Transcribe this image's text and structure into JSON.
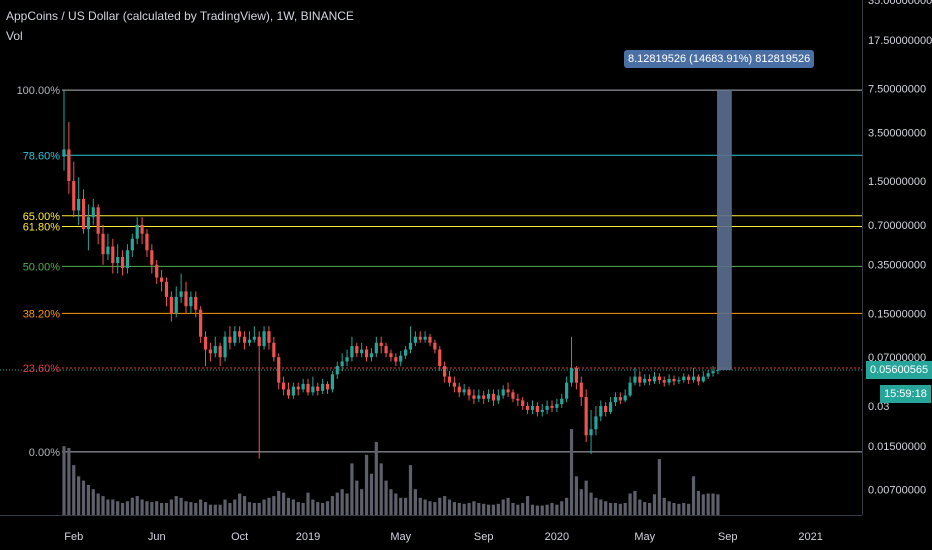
{
  "header": {
    "title": "AppCoins / US Dollar (calculated by TradingView), 1W, BINANCE",
    "indicator": "Vol"
  },
  "measure_label": "8.12819526 (14683.91%) 812819526",
  "price_tag": "0.05600565",
  "countdown_tag": "15:59:18",
  "chart_data": {
    "type": "candlestick",
    "title": "AppCoins / US Dollar (calculated by TradingView), 1W, BINANCE",
    "y_scale": "log",
    "ylim": [
      0.0045,
      35
    ],
    "y_ticks": [
      "35.00000000",
      "17.50000000",
      "7.50000000",
      "3.50000000",
      "1.50000000",
      "0.70000000",
      "0.35000000",
      "0.15000000",
      "0.07000000",
      "0.03",
      "0.01500000",
      "0.00700000"
    ],
    "y_tick_values": [
      35,
      17.5,
      7.5,
      3.5,
      1.5,
      0.7,
      0.35,
      0.15,
      0.07,
      0.03,
      0.015,
      0.007
    ],
    "x_ticks": [
      "Feb",
      "Jun",
      "Oct",
      "2019",
      "May",
      "Sep",
      "2020",
      "May",
      "Sep",
      "2021"
    ],
    "x_tick_weeks": [
      2,
      19,
      36,
      50,
      69,
      86,
      101,
      119,
      136,
      153
    ],
    "x_week_range": [
      0,
      165
    ],
    "fib_levels": [
      {
        "label": "100.00%",
        "value": 7.3,
        "color": "#b2b5be"
      },
      {
        "label": "78.60%",
        "value": 2.35,
        "color": "#26c6da"
      },
      {
        "label": "65.00%",
        "value": 0.82,
        "color": "#ffeb3b"
      },
      {
        "label": "61.80%",
        "value": 0.68,
        "color": "#ffeb3b"
      },
      {
        "label": "50.00%",
        "value": 0.34,
        "color": "#4caf50"
      },
      {
        "label": "38.20%",
        "value": 0.15,
        "color": "#ff9800"
      },
      {
        "label": "23.60%",
        "value": 0.058,
        "color": "#f23645"
      },
      {
        "label": "0.00%",
        "value": 0.0135,
        "color": "#b2b5be"
      }
    ],
    "current_price": 0.05600565,
    "measure": {
      "from_week": 133,
      "to_week": 135,
      "low": 0.056,
      "high": 7.3
    },
    "vol_max": 100,
    "candles": [
      {
        "w": 0,
        "o": 2.3,
        "c": 2.6,
        "h": 7.3,
        "l": 1.8,
        "v": 80
      },
      {
        "w": 1,
        "o": 2.6,
        "c": 1.5,
        "h": 4.2,
        "l": 1.2,
        "v": 78
      },
      {
        "w": 2,
        "o": 1.5,
        "c": 0.9,
        "h": 2.1,
        "l": 0.8,
        "v": 58
      },
      {
        "w": 3,
        "o": 0.9,
        "c": 1.1,
        "h": 1.6,
        "l": 0.7,
        "v": 45
      },
      {
        "w": 4,
        "o": 1.1,
        "c": 0.65,
        "h": 1.3,
        "l": 0.6,
        "v": 40
      },
      {
        "w": 5,
        "o": 0.65,
        "c": 0.8,
        "h": 1.0,
        "l": 0.45,
        "v": 35
      },
      {
        "w": 6,
        "o": 0.8,
        "c": 0.95,
        "h": 1.1,
        "l": 0.7,
        "v": 30
      },
      {
        "w": 7,
        "o": 0.95,
        "c": 0.6,
        "h": 1.0,
        "l": 0.5,
        "v": 25
      },
      {
        "w": 8,
        "o": 0.6,
        "c": 0.42,
        "h": 0.7,
        "l": 0.35,
        "v": 22
      },
      {
        "w": 9,
        "o": 0.42,
        "c": 0.48,
        "h": 0.6,
        "l": 0.38,
        "v": 18
      },
      {
        "w": 10,
        "o": 0.48,
        "c": 0.36,
        "h": 0.55,
        "l": 0.3,
        "v": 18
      },
      {
        "w": 11,
        "o": 0.36,
        "c": 0.4,
        "h": 0.5,
        "l": 0.3,
        "v": 16
      },
      {
        "w": 12,
        "o": 0.4,
        "c": 0.33,
        "h": 0.45,
        "l": 0.29,
        "v": 14
      },
      {
        "w": 13,
        "o": 0.33,
        "c": 0.45,
        "h": 0.5,
        "l": 0.3,
        "v": 16
      },
      {
        "w": 14,
        "o": 0.45,
        "c": 0.55,
        "h": 0.6,
        "l": 0.4,
        "v": 20
      },
      {
        "w": 15,
        "o": 0.55,
        "c": 0.7,
        "h": 0.8,
        "l": 0.5,
        "v": 22
      },
      {
        "w": 16,
        "o": 0.7,
        "c": 0.6,
        "h": 0.8,
        "l": 0.5,
        "v": 18
      },
      {
        "w": 17,
        "o": 0.6,
        "c": 0.45,
        "h": 0.65,
        "l": 0.4,
        "v": 16
      },
      {
        "w": 18,
        "o": 0.45,
        "c": 0.35,
        "h": 0.5,
        "l": 0.3,
        "v": 15
      },
      {
        "w": 19,
        "o": 0.35,
        "c": 0.28,
        "h": 0.38,
        "l": 0.25,
        "v": 16
      },
      {
        "w": 20,
        "o": 0.28,
        "c": 0.26,
        "h": 0.32,
        "l": 0.22,
        "v": 14
      },
      {
        "w": 21,
        "o": 0.26,
        "c": 0.2,
        "h": 0.28,
        "l": 0.17,
        "v": 14
      },
      {
        "w": 22,
        "o": 0.2,
        "c": 0.15,
        "h": 0.22,
        "l": 0.13,
        "v": 18
      },
      {
        "w": 23,
        "o": 0.15,
        "c": 0.2,
        "h": 0.24,
        "l": 0.14,
        "v": 22
      },
      {
        "w": 24,
        "o": 0.2,
        "c": 0.22,
        "h": 0.3,
        "l": 0.18,
        "v": 20
      },
      {
        "w": 25,
        "o": 0.22,
        "c": 0.17,
        "h": 0.26,
        "l": 0.15,
        "v": 16
      },
      {
        "w": 26,
        "o": 0.17,
        "c": 0.2,
        "h": 0.22,
        "l": 0.15,
        "v": 15
      },
      {
        "w": 27,
        "o": 0.2,
        "c": 0.16,
        "h": 0.22,
        "l": 0.14,
        "v": 14
      },
      {
        "w": 28,
        "o": 0.16,
        "c": 0.1,
        "h": 0.17,
        "l": 0.09,
        "v": 18
      },
      {
        "w": 29,
        "o": 0.1,
        "c": 0.08,
        "h": 0.11,
        "l": 0.06,
        "v": 15
      },
      {
        "w": 30,
        "o": 0.08,
        "c": 0.075,
        "h": 0.09,
        "l": 0.065,
        "v": 12
      },
      {
        "w": 31,
        "o": 0.075,
        "c": 0.085,
        "h": 0.1,
        "l": 0.07,
        "v": 12
      },
      {
        "w": 32,
        "o": 0.085,
        "c": 0.07,
        "h": 0.09,
        "l": 0.06,
        "v": 12
      },
      {
        "w": 33,
        "o": 0.07,
        "c": 0.1,
        "h": 0.11,
        "l": 0.065,
        "v": 18
      },
      {
        "w": 34,
        "o": 0.1,
        "c": 0.09,
        "h": 0.12,
        "l": 0.08,
        "v": 14
      },
      {
        "w": 35,
        "o": 0.09,
        "c": 0.11,
        "h": 0.12,
        "l": 0.085,
        "v": 18
      },
      {
        "w": 36,
        "o": 0.11,
        "c": 0.1,
        "h": 0.12,
        "l": 0.09,
        "v": 25
      },
      {
        "w": 37,
        "o": 0.1,
        "c": 0.09,
        "h": 0.11,
        "l": 0.08,
        "v": 22
      },
      {
        "w": 38,
        "o": 0.09,
        "c": 0.095,
        "h": 0.11,
        "l": 0.085,
        "v": 15
      },
      {
        "w": 39,
        "o": 0.095,
        "c": 0.1,
        "h": 0.12,
        "l": 0.09,
        "v": 14
      },
      {
        "w": 40,
        "o": 0.1,
        "c": 0.085,
        "h": 0.11,
        "l": 0.012,
        "v": 14
      },
      {
        "w": 41,
        "o": 0.085,
        "c": 0.11,
        "h": 0.12,
        "l": 0.08,
        "v": 18
      },
      {
        "w": 42,
        "o": 0.11,
        "c": 0.09,
        "h": 0.12,
        "l": 0.08,
        "v": 20
      },
      {
        "w": 43,
        "o": 0.09,
        "c": 0.07,
        "h": 0.1,
        "l": 0.065,
        "v": 22
      },
      {
        "w": 44,
        "o": 0.07,
        "c": 0.045,
        "h": 0.075,
        "l": 0.04,
        "v": 28
      },
      {
        "w": 45,
        "o": 0.045,
        "c": 0.04,
        "h": 0.05,
        "l": 0.036,
        "v": 26
      },
      {
        "w": 46,
        "o": 0.04,
        "c": 0.036,
        "h": 0.045,
        "l": 0.034,
        "v": 20
      },
      {
        "w": 47,
        "o": 0.036,
        "c": 0.042,
        "h": 0.045,
        "l": 0.034,
        "v": 18
      },
      {
        "w": 48,
        "o": 0.042,
        "c": 0.04,
        "h": 0.045,
        "l": 0.036,
        "v": 15
      },
      {
        "w": 49,
        "o": 0.04,
        "c": 0.044,
        "h": 0.048,
        "l": 0.038,
        "v": 14
      },
      {
        "w": 50,
        "o": 0.044,
        "c": 0.038,
        "h": 0.048,
        "l": 0.036,
        "v": 26
      },
      {
        "w": 51,
        "o": 0.038,
        "c": 0.042,
        "h": 0.05,
        "l": 0.036,
        "v": 18
      },
      {
        "w": 52,
        "o": 0.042,
        "c": 0.039,
        "h": 0.045,
        "l": 0.036,
        "v": 15
      },
      {
        "w": 53,
        "o": 0.039,
        "c": 0.044,
        "h": 0.048,
        "l": 0.037,
        "v": 14
      },
      {
        "w": 54,
        "o": 0.044,
        "c": 0.04,
        "h": 0.046,
        "l": 0.037,
        "v": 16
      },
      {
        "w": 55,
        "o": 0.04,
        "c": 0.052,
        "h": 0.055,
        "l": 0.038,
        "v": 22
      },
      {
        "w": 56,
        "o": 0.052,
        "c": 0.06,
        "h": 0.065,
        "l": 0.048,
        "v": 26
      },
      {
        "w": 57,
        "o": 0.06,
        "c": 0.065,
        "h": 0.075,
        "l": 0.055,
        "v": 30
      },
      {
        "w": 58,
        "o": 0.065,
        "c": 0.07,
        "h": 0.08,
        "l": 0.06,
        "v": 25
      },
      {
        "w": 59,
        "o": 0.07,
        "c": 0.085,
        "h": 0.1,
        "l": 0.065,
        "v": 60
      },
      {
        "w": 60,
        "o": 0.085,
        "c": 0.075,
        "h": 0.09,
        "l": 0.07,
        "v": 40
      },
      {
        "w": 61,
        "o": 0.075,
        "c": 0.08,
        "h": 0.09,
        "l": 0.07,
        "v": 30
      },
      {
        "w": 62,
        "o": 0.08,
        "c": 0.07,
        "h": 0.085,
        "l": 0.065,
        "v": 70
      },
      {
        "w": 63,
        "o": 0.07,
        "c": 0.075,
        "h": 0.082,
        "l": 0.065,
        "v": 48
      },
      {
        "w": 64,
        "o": 0.075,
        "c": 0.09,
        "h": 0.1,
        "l": 0.07,
        "v": 85
      },
      {
        "w": 65,
        "o": 0.09,
        "c": 0.085,
        "h": 0.1,
        "l": 0.075,
        "v": 60
      },
      {
        "w": 66,
        "o": 0.085,
        "c": 0.075,
        "h": 0.09,
        "l": 0.07,
        "v": 40
      },
      {
        "w": 67,
        "o": 0.075,
        "c": 0.07,
        "h": 0.08,
        "l": 0.065,
        "v": 30
      },
      {
        "w": 68,
        "o": 0.07,
        "c": 0.065,
        "h": 0.075,
        "l": 0.06,
        "v": 25
      },
      {
        "w": 69,
        "o": 0.065,
        "c": 0.072,
        "h": 0.078,
        "l": 0.06,
        "v": 20
      },
      {
        "w": 70,
        "o": 0.072,
        "c": 0.08,
        "h": 0.085,
        "l": 0.068,
        "v": 20
      },
      {
        "w": 71,
        "o": 0.08,
        "c": 0.09,
        "h": 0.12,
        "l": 0.075,
        "v": 58
      },
      {
        "w": 72,
        "o": 0.09,
        "c": 0.1,
        "h": 0.11,
        "l": 0.085,
        "v": 30
      },
      {
        "w": 73,
        "o": 0.1,
        "c": 0.095,
        "h": 0.11,
        "l": 0.09,
        "v": 20
      },
      {
        "w": 74,
        "o": 0.095,
        "c": 0.1,
        "h": 0.11,
        "l": 0.09,
        "v": 18
      },
      {
        "w": 75,
        "o": 0.1,
        "c": 0.09,
        "h": 0.105,
        "l": 0.085,
        "v": 16
      },
      {
        "w": 76,
        "o": 0.09,
        "c": 0.08,
        "h": 0.095,
        "l": 0.075,
        "v": 15
      },
      {
        "w": 77,
        "o": 0.08,
        "c": 0.06,
        "h": 0.085,
        "l": 0.055,
        "v": 20
      },
      {
        "w": 78,
        "o": 0.06,
        "c": 0.05,
        "h": 0.065,
        "l": 0.045,
        "v": 22
      },
      {
        "w": 79,
        "o": 0.05,
        "c": 0.045,
        "h": 0.055,
        "l": 0.042,
        "v": 18
      },
      {
        "w": 80,
        "o": 0.045,
        "c": 0.042,
        "h": 0.05,
        "l": 0.038,
        "v": 15
      },
      {
        "w": 81,
        "o": 0.042,
        "c": 0.038,
        "h": 0.045,
        "l": 0.035,
        "v": 14
      },
      {
        "w": 82,
        "o": 0.038,
        "c": 0.04,
        "h": 0.044,
        "l": 0.036,
        "v": 13
      },
      {
        "w": 83,
        "o": 0.04,
        "c": 0.036,
        "h": 0.042,
        "l": 0.033,
        "v": 14
      },
      {
        "w": 84,
        "o": 0.036,
        "c": 0.034,
        "h": 0.04,
        "l": 0.031,
        "v": 16
      },
      {
        "w": 85,
        "o": 0.034,
        "c": 0.036,
        "h": 0.04,
        "l": 0.032,
        "v": 14
      },
      {
        "w": 86,
        "o": 0.036,
        "c": 0.034,
        "h": 0.039,
        "l": 0.031,
        "v": 13
      },
      {
        "w": 87,
        "o": 0.034,
        "c": 0.037,
        "h": 0.04,
        "l": 0.032,
        "v": 12
      },
      {
        "w": 88,
        "o": 0.037,
        "c": 0.033,
        "h": 0.04,
        "l": 0.03,
        "v": 12
      },
      {
        "w": 89,
        "o": 0.033,
        "c": 0.036,
        "h": 0.04,
        "l": 0.031,
        "v": 13
      },
      {
        "w": 90,
        "o": 0.036,
        "c": 0.04,
        "h": 0.043,
        "l": 0.034,
        "v": 18
      },
      {
        "w": 91,
        "o": 0.04,
        "c": 0.038,
        "h": 0.045,
        "l": 0.035,
        "v": 20
      },
      {
        "w": 92,
        "o": 0.038,
        "c": 0.034,
        "h": 0.04,
        "l": 0.032,
        "v": 14
      },
      {
        "w": 93,
        "o": 0.034,
        "c": 0.033,
        "h": 0.037,
        "l": 0.03,
        "v": 12
      },
      {
        "w": 94,
        "o": 0.033,
        "c": 0.03,
        "h": 0.035,
        "l": 0.028,
        "v": 14
      },
      {
        "w": 95,
        "o": 0.03,
        "c": 0.028,
        "h": 0.032,
        "l": 0.026,
        "v": 22
      },
      {
        "w": 96,
        "o": 0.028,
        "c": 0.03,
        "h": 0.033,
        "l": 0.026,
        "v": 12
      },
      {
        "w": 97,
        "o": 0.03,
        "c": 0.027,
        "h": 0.032,
        "l": 0.025,
        "v": 11
      },
      {
        "w": 98,
        "o": 0.027,
        "c": 0.028,
        "h": 0.031,
        "l": 0.025,
        "v": 11
      },
      {
        "w": 99,
        "o": 0.028,
        "c": 0.03,
        "h": 0.033,
        "l": 0.026,
        "v": 12
      },
      {
        "w": 100,
        "o": 0.03,
        "c": 0.029,
        "h": 0.033,
        "l": 0.027,
        "v": 14
      },
      {
        "w": 101,
        "o": 0.029,
        "c": 0.031,
        "h": 0.034,
        "l": 0.027,
        "v": 12
      },
      {
        "w": 102,
        "o": 0.031,
        "c": 0.034,
        "h": 0.037,
        "l": 0.029,
        "v": 16
      },
      {
        "w": 103,
        "o": 0.034,
        "c": 0.045,
        "h": 0.05,
        "l": 0.032,
        "v": 20
      },
      {
        "w": 104,
        "o": 0.045,
        "c": 0.058,
        "h": 0.1,
        "l": 0.042,
        "v": 100
      },
      {
        "w": 105,
        "o": 0.058,
        "c": 0.045,
        "h": 0.06,
        "l": 0.04,
        "v": 45
      },
      {
        "w": 106,
        "o": 0.045,
        "c": 0.035,
        "h": 0.05,
        "l": 0.03,
        "v": 30
      },
      {
        "w": 107,
        "o": 0.035,
        "c": 0.018,
        "h": 0.04,
        "l": 0.016,
        "v": 40
      },
      {
        "w": 108,
        "o": 0.018,
        "c": 0.02,
        "h": 0.028,
        "l": 0.013,
        "v": 26
      },
      {
        "w": 109,
        "o": 0.02,
        "c": 0.025,
        "h": 0.03,
        "l": 0.018,
        "v": 20
      },
      {
        "w": 110,
        "o": 0.025,
        "c": 0.03,
        "h": 0.033,
        "l": 0.023,
        "v": 18
      },
      {
        "w": 111,
        "o": 0.03,
        "c": 0.027,
        "h": 0.032,
        "l": 0.025,
        "v": 16
      },
      {
        "w": 112,
        "o": 0.027,
        "c": 0.032,
        "h": 0.035,
        "l": 0.026,
        "v": 14
      },
      {
        "w": 113,
        "o": 0.032,
        "c": 0.035,
        "h": 0.038,
        "l": 0.03,
        "v": 14
      },
      {
        "w": 114,
        "o": 0.035,
        "c": 0.033,
        "h": 0.038,
        "l": 0.031,
        "v": 13
      },
      {
        "w": 115,
        "o": 0.033,
        "c": 0.036,
        "h": 0.04,
        "l": 0.032,
        "v": 14
      },
      {
        "w": 116,
        "o": 0.036,
        "c": 0.045,
        "h": 0.05,
        "l": 0.035,
        "v": 25
      },
      {
        "w": 117,
        "o": 0.045,
        "c": 0.05,
        "h": 0.058,
        "l": 0.043,
        "v": 28
      },
      {
        "w": 118,
        "o": 0.05,
        "c": 0.045,
        "h": 0.055,
        "l": 0.042,
        "v": 18
      },
      {
        "w": 119,
        "o": 0.045,
        "c": 0.048,
        "h": 0.052,
        "l": 0.043,
        "v": 15
      },
      {
        "w": 120,
        "o": 0.048,
        "c": 0.046,
        "h": 0.052,
        "l": 0.043,
        "v": 14
      },
      {
        "w": 121,
        "o": 0.046,
        "c": 0.05,
        "h": 0.054,
        "l": 0.044,
        "v": 24
      },
      {
        "w": 122,
        "o": 0.05,
        "c": 0.047,
        "h": 0.053,
        "l": 0.044,
        "v": 65
      },
      {
        "w": 123,
        "o": 0.047,
        "c": 0.045,
        "h": 0.05,
        "l": 0.042,
        "v": 20
      },
      {
        "w": 124,
        "o": 0.045,
        "c": 0.048,
        "h": 0.052,
        "l": 0.043,
        "v": 16
      },
      {
        "w": 125,
        "o": 0.048,
        "c": 0.046,
        "h": 0.051,
        "l": 0.043,
        "v": 14
      },
      {
        "w": 126,
        "o": 0.046,
        "c": 0.047,
        "h": 0.05,
        "l": 0.044,
        "v": 13
      },
      {
        "w": 127,
        "o": 0.047,
        "c": 0.05,
        "h": 0.053,
        "l": 0.045,
        "v": 14
      },
      {
        "w": 128,
        "o": 0.05,
        "c": 0.047,
        "h": 0.052,
        "l": 0.044,
        "v": 13
      },
      {
        "w": 129,
        "o": 0.047,
        "c": 0.05,
        "h": 0.058,
        "l": 0.045,
        "v": 45
      },
      {
        "w": 130,
        "o": 0.05,
        "c": 0.046,
        "h": 0.052,
        "l": 0.043,
        "v": 28
      },
      {
        "w": 131,
        "o": 0.046,
        "c": 0.05,
        "h": 0.055,
        "l": 0.045,
        "v": 24
      },
      {
        "w": 132,
        "o": 0.05,
        "c": 0.053,
        "h": 0.056,
        "l": 0.048,
        "v": 25
      },
      {
        "w": 133,
        "o": 0.053,
        "c": 0.055,
        "h": 0.06,
        "l": 0.05,
        "v": 25
      },
      {
        "w": 134,
        "o": 0.055,
        "c": 0.056,
        "h": 0.058,
        "l": 0.052,
        "v": 24
      }
    ]
  },
  "colors": {
    "up": "#26a69a",
    "down": "#ef5350",
    "bg": "#000000",
    "axis_text": "#d1d4dc",
    "volume": "#5d606b",
    "measure": "#5b6f8f"
  }
}
